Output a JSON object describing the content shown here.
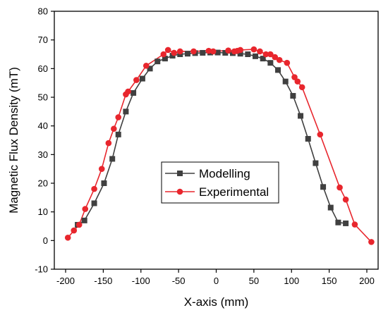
{
  "chart_data": {
    "type": "line",
    "title": "",
    "xlabel": "X-axis (mm)",
    "ylabel": "Magnetic Flux Density (mT)",
    "xlim": [
      -215,
      215
    ],
    "ylim": [
      -10,
      80
    ],
    "xticks": [
      -200,
      -150,
      -100,
      -50,
      0,
      50,
      100,
      150,
      200
    ],
    "yticks": [
      -10,
      0,
      10,
      20,
      30,
      40,
      50,
      60,
      70,
      80
    ],
    "grid": false,
    "legend_position": "center-left",
    "series": [
      {
        "name": "Modelling",
        "color": "#404040",
        "marker": "square",
        "x": [
          -184,
          -175,
          -162,
          -149,
          -138,
          -130,
          -120,
          -110,
          -98,
          -88,
          -78,
          -68,
          -58,
          -48,
          -38,
          -28,
          -18,
          -8,
          2,
          12,
          22,
          32,
          42,
          52,
          62,
          72,
          82,
          92,
          102,
          112,
          122,
          132,
          142,
          152,
          162,
          172
        ],
        "y": [
          5.5,
          7,
          13,
          20,
          28.5,
          37,
          45,
          51.5,
          56.5,
          60,
          62.5,
          63.5,
          64.5,
          65,
          65.2,
          65.4,
          65.5,
          65.6,
          65.6,
          65.5,
          65.4,
          65.2,
          65,
          64.3,
          63.5,
          62,
          59.5,
          55.5,
          50.5,
          43.5,
          35.5,
          27,
          18.7,
          11.5,
          6.3,
          6
        ]
      },
      {
        "name": "Experimental",
        "color": "#e8262d",
        "marker": "circle",
        "x": [
          -197,
          -189,
          -182,
          -174,
          -162,
          -152,
          -143,
          -136,
          -130,
          -120,
          -117,
          -106,
          -93,
          -70,
          -64,
          -56,
          -48,
          -30,
          -10,
          -4,
          16,
          24,
          28,
          32,
          50,
          58,
          66,
          72,
          78,
          84,
          94,
          104,
          108,
          114,
          138,
          164,
          172,
          184,
          206
        ],
        "y": [
          1,
          3.5,
          5.5,
          11,
          18,
          25,
          34,
          39,
          43,
          51,
          52,
          56,
          61,
          65,
          66.5,
          65.5,
          66,
          66,
          66.2,
          66,
          66.3,
          66,
          66.2,
          66.5,
          66.7,
          66,
          65,
          65,
          64,
          63,
          62,
          57,
          55.5,
          53.5,
          37,
          18.5,
          14.3,
          5.6,
          -0.5
        ]
      }
    ]
  }
}
